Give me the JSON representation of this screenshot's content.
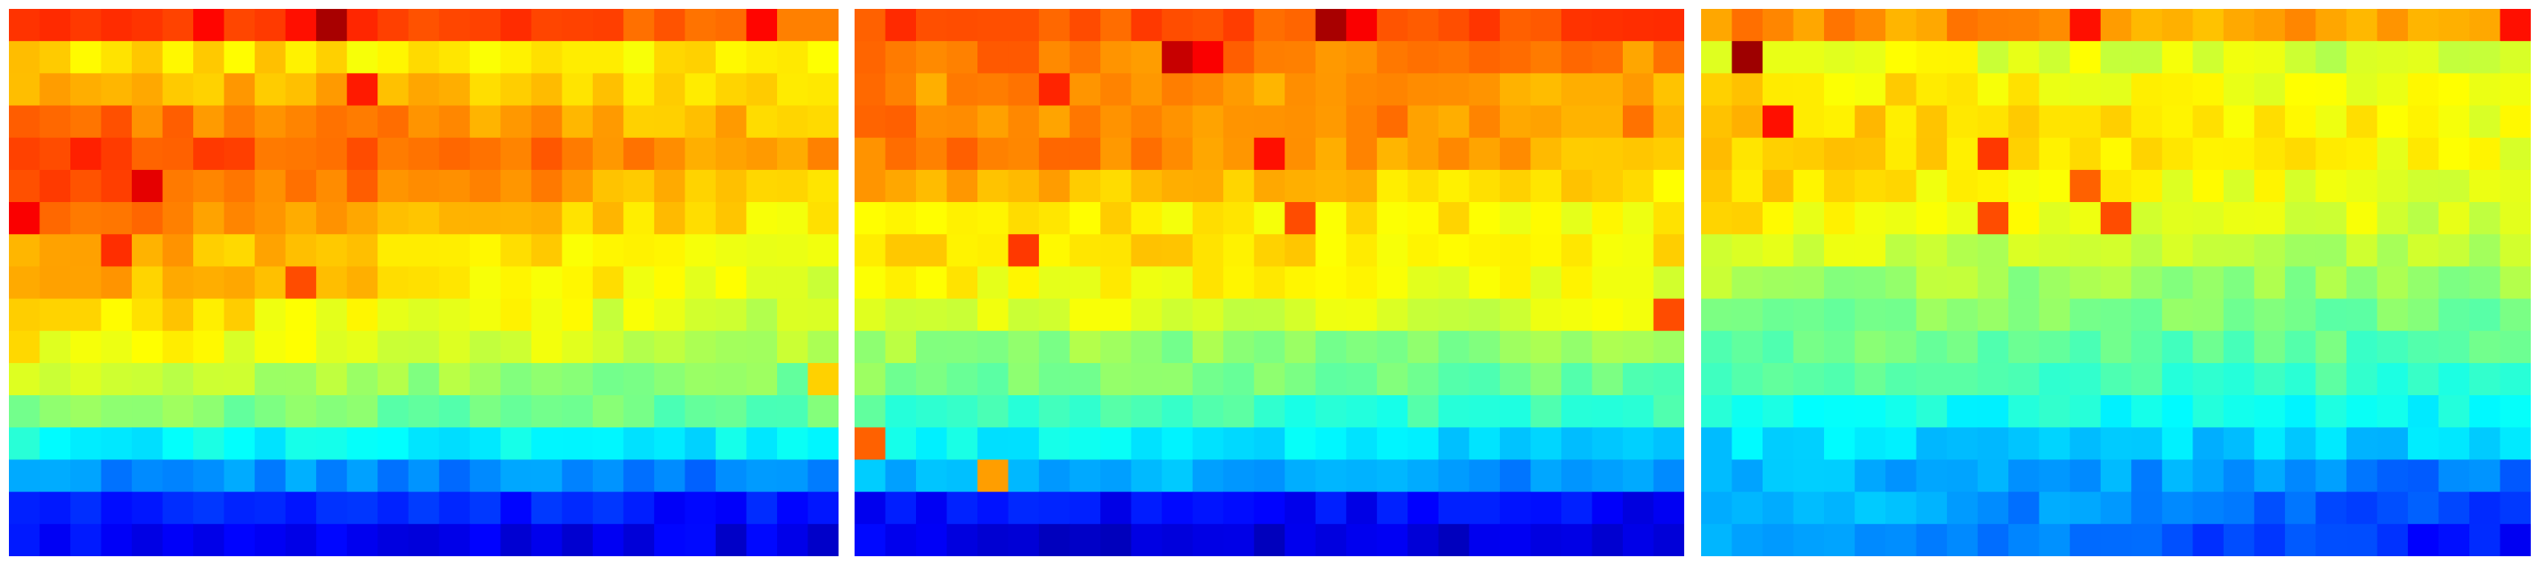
{
  "figure": {
    "colormap": "jet",
    "background": "#ffffff",
    "panel_count": 3
  },
  "chart_data": [
    {
      "type": "heatmap",
      "title": "",
      "xlabel": "",
      "ylabel": "",
      "colormap": "jet",
      "value_range": [
        0,
        1
      ],
      "rows": 17,
      "cols": 27,
      "row_profile": [
        0.76,
        0.64,
        0.64,
        0.68,
        0.72,
        0.68,
        0.64,
        0.62,
        0.6,
        0.57,
        0.56,
        0.49,
        0.47,
        0.36,
        0.25,
        0.14,
        0.1
      ],
      "start_bias": [
        0.1,
        0.02,
        0.08,
        0.1,
        0.1,
        0.12,
        0.12,
        0.1,
        0.12,
        0.1,
        0.07,
        0.08,
        0.04,
        0.02,
        0.02,
        0.02,
        0.02
      ],
      "hotspots": [
        {
          "r": 0,
          "c": 10,
          "v": 0.96
        },
        {
          "r": 0,
          "c": 9,
          "v": 0.86
        },
        {
          "r": 0,
          "c": 24,
          "v": 0.87
        },
        {
          "r": 2,
          "c": 11,
          "v": 0.85
        },
        {
          "r": 5,
          "c": 4,
          "v": 0.9
        },
        {
          "r": 6,
          "c": 0,
          "v": 0.88
        },
        {
          "r": 7,
          "c": 3,
          "v": 0.83
        },
        {
          "r": 8,
          "c": 9,
          "v": 0.8
        },
        {
          "r": 11,
          "c": 26,
          "v": 0.67
        }
      ]
    },
    {
      "type": "heatmap",
      "title": "",
      "xlabel": "",
      "ylabel": "",
      "colormap": "jet",
      "value_range": [
        0,
        1
      ],
      "rows": 17,
      "cols": 27,
      "row_profile": [
        0.8,
        0.74,
        0.7,
        0.73,
        0.7,
        0.66,
        0.63,
        0.64,
        0.61,
        0.59,
        0.51,
        0.48,
        0.42,
        0.33,
        0.26,
        0.12,
        0.08
      ],
      "start_bias": [
        0.0,
        0.02,
        0.04,
        0.02,
        0.06,
        0.04,
        0.03,
        0.03,
        0.02,
        0.01,
        0.02,
        0.02,
        0.02,
        0.05,
        0.05,
        0.02,
        0.02
      ],
      "hotspots": [
        {
          "r": 0,
          "c": 15,
          "v": 0.96
        },
        {
          "r": 0,
          "c": 16,
          "v": 0.88
        },
        {
          "r": 1,
          "c": 10,
          "v": 0.93
        },
        {
          "r": 1,
          "c": 11,
          "v": 0.88
        },
        {
          "r": 2,
          "c": 6,
          "v": 0.84
        },
        {
          "r": 4,
          "c": 13,
          "v": 0.86
        },
        {
          "r": 6,
          "c": 14,
          "v": 0.8
        },
        {
          "r": 7,
          "c": 5,
          "v": 0.82
        },
        {
          "r": 13,
          "c": 0,
          "v": 0.78
        },
        {
          "r": 14,
          "c": 4,
          "v": 0.72
        },
        {
          "r": 9,
          "c": 26,
          "v": 0.8
        }
      ]
    },
    {
      "type": "heatmap",
      "title": "",
      "xlabel": "",
      "ylabel": "",
      "colormap": "jet",
      "value_range": [
        0,
        1
      ],
      "rows": 17,
      "cols": 27,
      "row_profile": [
        0.7,
        0.56,
        0.6,
        0.62,
        0.62,
        0.6,
        0.58,
        0.55,
        0.52,
        0.49,
        0.46,
        0.43,
        0.38,
        0.32,
        0.24,
        0.18,
        0.14
      ],
      "start_bias": [
        0.04,
        0.06,
        0.06,
        0.06,
        0.06,
        0.06,
        0.06,
        0.04,
        0.02,
        0.02,
        0.02,
        0.02,
        0.02,
        0.02,
        0.08,
        0.14,
        0.16
      ],
      "hotspots": [
        {
          "r": 1,
          "c": 1,
          "v": 0.97
        },
        {
          "r": 0,
          "c": 12,
          "v": 0.86
        },
        {
          "r": 0,
          "c": 26,
          "v": 0.86
        },
        {
          "r": 3,
          "c": 2,
          "v": 0.86
        },
        {
          "r": 4,
          "c": 9,
          "v": 0.82
        },
        {
          "r": 6,
          "c": 9,
          "v": 0.8
        },
        {
          "r": 6,
          "c": 13,
          "v": 0.8
        },
        {
          "r": 5,
          "c": 12,
          "v": 0.78
        }
      ]
    }
  ]
}
